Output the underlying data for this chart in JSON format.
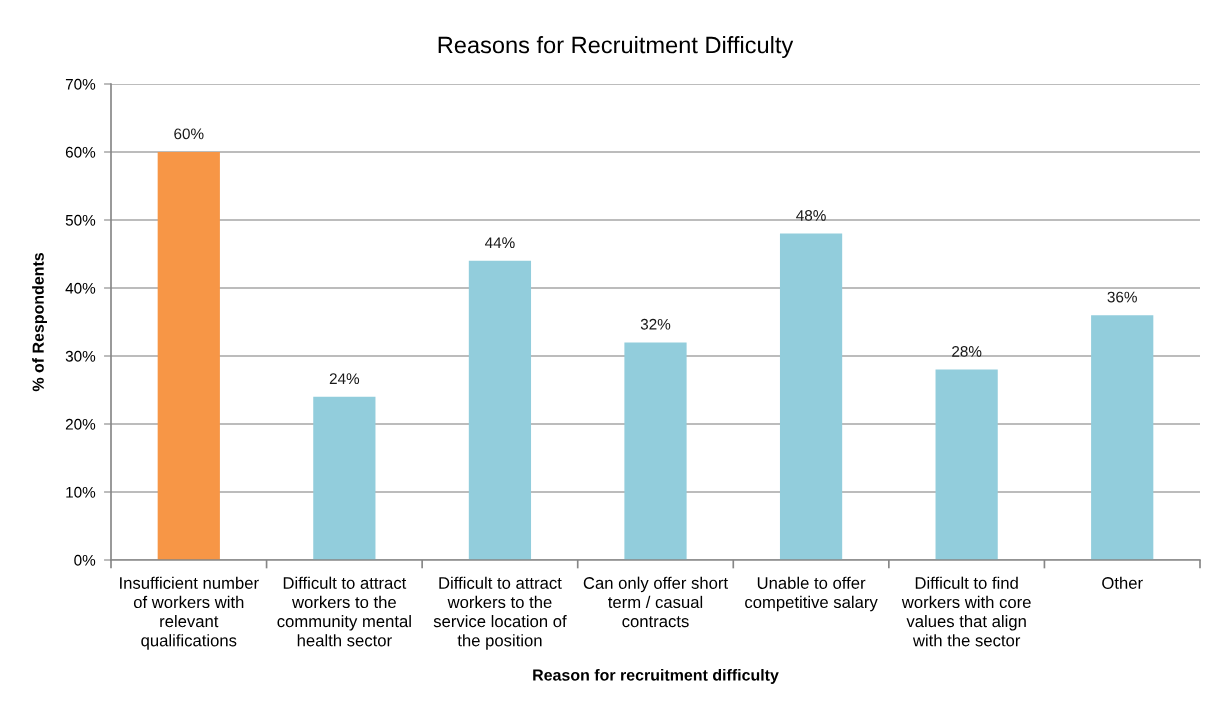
{
  "chart_data": {
    "type": "bar",
    "title": "Reasons for Recruitment Difficulty",
    "xlabel": "Reason for recruitment difficulty",
    "ylabel": "% of Respondents",
    "categories": [
      "Insufficient number of workers with relevant qualifications",
      "Difficult to attract workers to the community mental health sector",
      "Difficult to attract workers to the service location of the position",
      "Can only offer short term / casual contracts",
      "Unable to offer competitive salary",
      "Difficult to find workers with core values that align with the sector",
      "Other"
    ],
    "values": [
      60,
      24,
      44,
      32,
      48,
      28,
      36
    ],
    "colors": [
      "#f79646",
      "#92cddc",
      "#92cddc",
      "#92cddc",
      "#92cddc",
      "#92cddc",
      "#92cddc"
    ],
    "value_labels": [
      "60%",
      "24%",
      "44%",
      "32%",
      "48%",
      "28%",
      "36%"
    ],
    "ylim": [
      0,
      70
    ],
    "yticks": [
      {
        "value": 0,
        "label": "0%"
      },
      {
        "value": 10,
        "label": "10%"
      },
      {
        "value": 20,
        "label": "20%"
      },
      {
        "value": 30,
        "label": "30%"
      },
      {
        "value": 40,
        "label": "40%"
      },
      {
        "value": 50,
        "label": "50%"
      },
      {
        "value": 60,
        "label": "60%"
      },
      {
        "value": 70,
        "label": "70%"
      }
    ],
    "grid": "y"
  }
}
